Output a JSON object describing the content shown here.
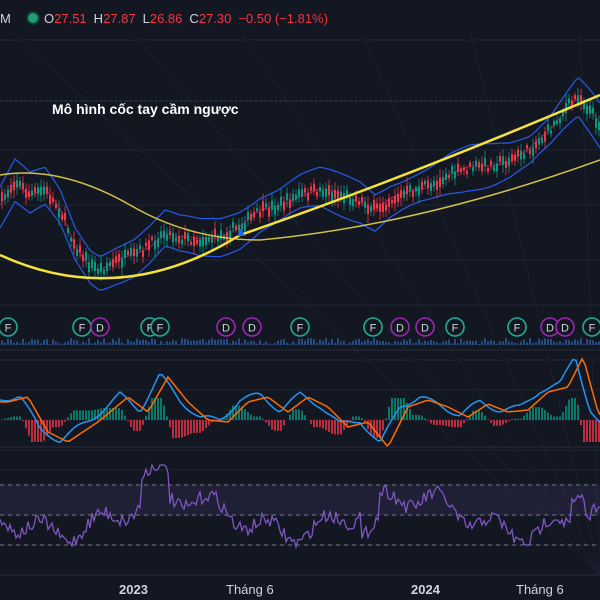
{
  "header": {
    "symbol_tail": "M",
    "status_icon": "live-status-dot-icon",
    "ohlc": [
      {
        "key": "O",
        "value": "27.51"
      },
      {
        "key": "H",
        "value": "27.87"
      },
      {
        "key": "L",
        "value": "26.86"
      },
      {
        "key": "C",
        "value": "27.30"
      }
    ],
    "change": "−0.50 (−1.81%)"
  },
  "annotation": "Mô hình cốc tay cầm ngược",
  "time_axis": [
    {
      "label": "2023",
      "bold": true
    },
    {
      "label": "Tháng 6",
      "bold": false
    },
    {
      "label": "2024",
      "bold": true
    },
    {
      "label": "Tháng 6",
      "bold": false
    }
  ],
  "events": [
    {
      "type": "F"
    },
    {
      "type": "F"
    },
    {
      "type": "D"
    },
    {
      "type": "F"
    },
    {
      "type": "F"
    },
    {
      "type": "D"
    },
    {
      "type": "D"
    },
    {
      "type": "F"
    },
    {
      "type": "F"
    },
    {
      "type": "D"
    },
    {
      "type": "D"
    },
    {
      "type": "F"
    },
    {
      "type": "F"
    },
    {
      "type": "D"
    },
    {
      "type": "D"
    },
    {
      "type": "F"
    }
  ],
  "colors": {
    "background": "#131722",
    "up": "#089981",
    "down": "#f23645",
    "cup_line": "#f5e33b",
    "bollinger": "#2962ff",
    "macd": "#2196f3",
    "signal": "#ff6d00",
    "rsi": "#7e57c2",
    "event_f": "#22ab94",
    "event_d": "#9c27b0"
  }
}
